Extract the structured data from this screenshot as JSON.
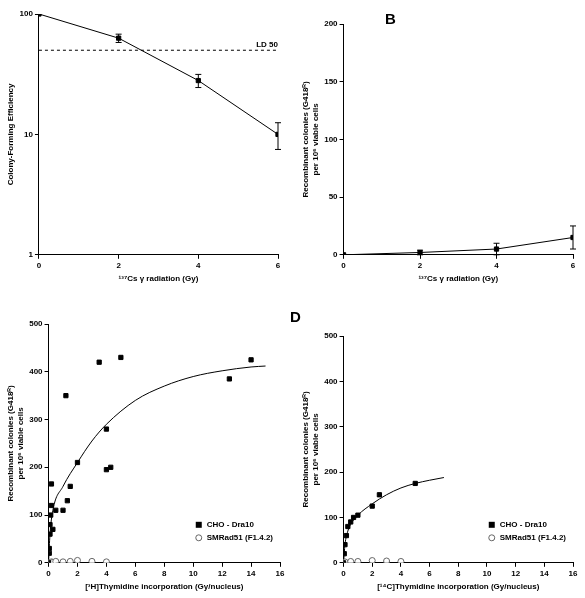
{
  "chart_data": [
    {
      "type": "line",
      "x_label": "¹³⁷Cs γ radiation (Gy)",
      "y_label": "Colony-Forming Efficiency",
      "log": "y",
      "grid": false,
      "xlim": [
        0,
        6
      ],
      "xticks": [
        0,
        2,
        4,
        6
      ],
      "ylim": [
        1,
        100
      ],
      "yticks": [
        1,
        10,
        100
      ],
      "annotations": [
        {
          "y": 50,
          "label": "LD 50"
        }
      ],
      "series": [
        {
          "color": "#000000",
          "marker": "square",
          "x": [
            0,
            2,
            4,
            6
          ],
          "values": [
            100,
            63,
            28,
            10
          ],
          "errors": [
            0,
            5,
            3.5,
            2.5
          ]
        }
      ]
    },
    {
      "type": "line",
      "panel_label": "B",
      "x_label": "¹³⁷Cs γ radiation (Gy)",
      "y_label": [
        "Recombinant colonies (G418ᴿ)",
        "per 10⁶ viable cells"
      ],
      "grid": false,
      "xlim": [
        0,
        6
      ],
      "xticks": [
        0,
        2,
        4,
        6
      ],
      "ylim": [
        0,
        200
      ],
      "yticks": [
        0,
        50,
        100,
        150,
        200
      ],
      "series": [
        {
          "color": "#000000",
          "marker": "square",
          "x": [
            0,
            2,
            4,
            6
          ],
          "values": [
            0,
            2,
            5,
            15
          ],
          "errors": [
            0,
            2,
            5,
            10
          ]
        }
      ]
    },
    {
      "type": "scatter",
      "x_label": "[³H]Thymidine incorporation (Gy/nucleus)",
      "y_label": [
        "Recombinant colonies (G418ᴿ)",
        "per 10⁶ viable cells"
      ],
      "grid": false,
      "legend": "lower right",
      "xlim": [
        0,
        16
      ],
      "xticks": [
        0,
        2,
        4,
        6,
        8,
        10,
        12,
        14,
        16
      ],
      "ylim": [
        0,
        500
      ],
      "yticks": [
        0,
        100,
        200,
        300,
        400,
        500
      ],
      "series": [
        {
          "name": "CHO - Dra10",
          "color": "#000000",
          "marker": "square",
          "x": [
            0,
            0.05,
            0.05,
            0.1,
            0.1,
            0.15,
            0.2,
            0.2,
            0.3,
            0.5,
            1,
            1.2,
            1.3,
            1.5,
            2,
            3.5,
            4,
            4,
            4.3,
            5,
            12.5,
            14
          ],
          "values": [
            0,
            20,
            30,
            60,
            80,
            100,
            120,
            165,
            70,
            110,
            110,
            350,
            130,
            160,
            210,
            420,
            280,
            195,
            200,
            430,
            385,
            425
          ],
          "fit": {
            "x": [
              0,
              0.1,
              0.3,
              1,
              2,
              3,
              4,
              6,
              8,
              10,
              12,
              14,
              15
            ],
            "values": [
              0,
              60,
              110,
              160,
              210,
              255,
              290,
              340,
              370,
              390,
              402,
              410,
              412
            ]
          }
        },
        {
          "name": "SMRad51 (F1.4.2)",
          "color": "#666666",
          "marker": "open circle",
          "x": [
            0,
            0.2,
            0.3,
            0.5,
            1,
            1.5,
            2,
            3,
            4
          ],
          "values": [
            0,
            2,
            1,
            3,
            2,
            3,
            5,
            3,
            2
          ]
        }
      ]
    },
    {
      "type": "scatter",
      "panel_label": "D",
      "x_label": "[¹⁴C]Thymidine incorporation (Gy/nucleus)",
      "y_label": [
        "Recombinant colonies (G418ᴿ)",
        "per 10⁶ viable cells"
      ],
      "grid": false,
      "legend": "lower right",
      "xlim": [
        0,
        16
      ],
      "xticks": [
        0,
        2,
        4,
        6,
        8,
        10,
        12,
        14,
        16
      ],
      "ylim": [
        0,
        500
      ],
      "yticks": [
        0,
        100,
        200,
        300,
        400,
        500
      ],
      "series": [
        {
          "name": "CHO - Dra10",
          "color": "#000000",
          "marker": "square",
          "x": [
            0,
            0.05,
            0.1,
            0.2,
            0.3,
            0.5,
            0.7,
            1,
            2,
            2.5,
            5
          ],
          "values": [
            0,
            20,
            40,
            60,
            80,
            90,
            100,
            105,
            125,
            150,
            175
          ],
          "fit": {
            "x": [
              0,
              0.1,
              0.3,
              0.5,
              1,
              2,
              3,
              4,
              5,
              6,
              7
            ],
            "values": [
              0,
              40,
              70,
              85,
              105,
              130,
              150,
              165,
              175,
              182,
              188
            ]
          }
        },
        {
          "name": "SMRad51 (F1.4.2)",
          "color": "#666666",
          "marker": "open circle",
          "x": [
            0.1,
            0.5,
            1,
            2,
            3,
            4
          ],
          "values": [
            2,
            3,
            3,
            5,
            4,
            3
          ]
        }
      ]
    }
  ]
}
